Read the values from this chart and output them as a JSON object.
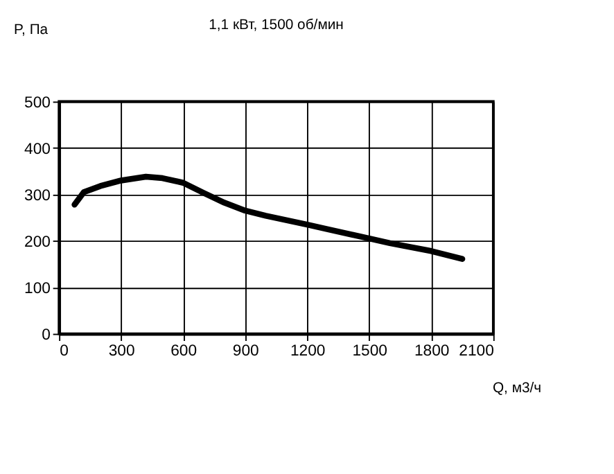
{
  "chart_data": {
    "type": "line",
    "title": "1,1 кВт, 1500 об/мин",
    "xlabel": "Q, м3/ч",
    "ylabel": "P, Па",
    "x": [
      75,
      120,
      200,
      300,
      420,
      500,
      600,
      700,
      800,
      900,
      1000,
      1200,
      1300,
      1500,
      1600,
      1800,
      1950
    ],
    "series": [
      {
        "color": "#000000",
        "values": [
          278,
          305,
          318,
          330,
          338,
          335,
          325,
          303,
          282,
          265,
          254,
          235,
          225,
          205,
          195,
          178,
          161
        ]
      }
    ],
    "xlim": [
      0,
      2100
    ],
    "xticks": [
      0,
      300,
      600,
      900,
      1200,
      1500,
      1800,
      2100
    ],
    "ylim": [
      0,
      500
    ],
    "yticks": [
      0,
      100,
      200,
      300,
      400,
      500
    ],
    "grid": true,
    "marker": "none",
    "line_style": "solid"
  }
}
